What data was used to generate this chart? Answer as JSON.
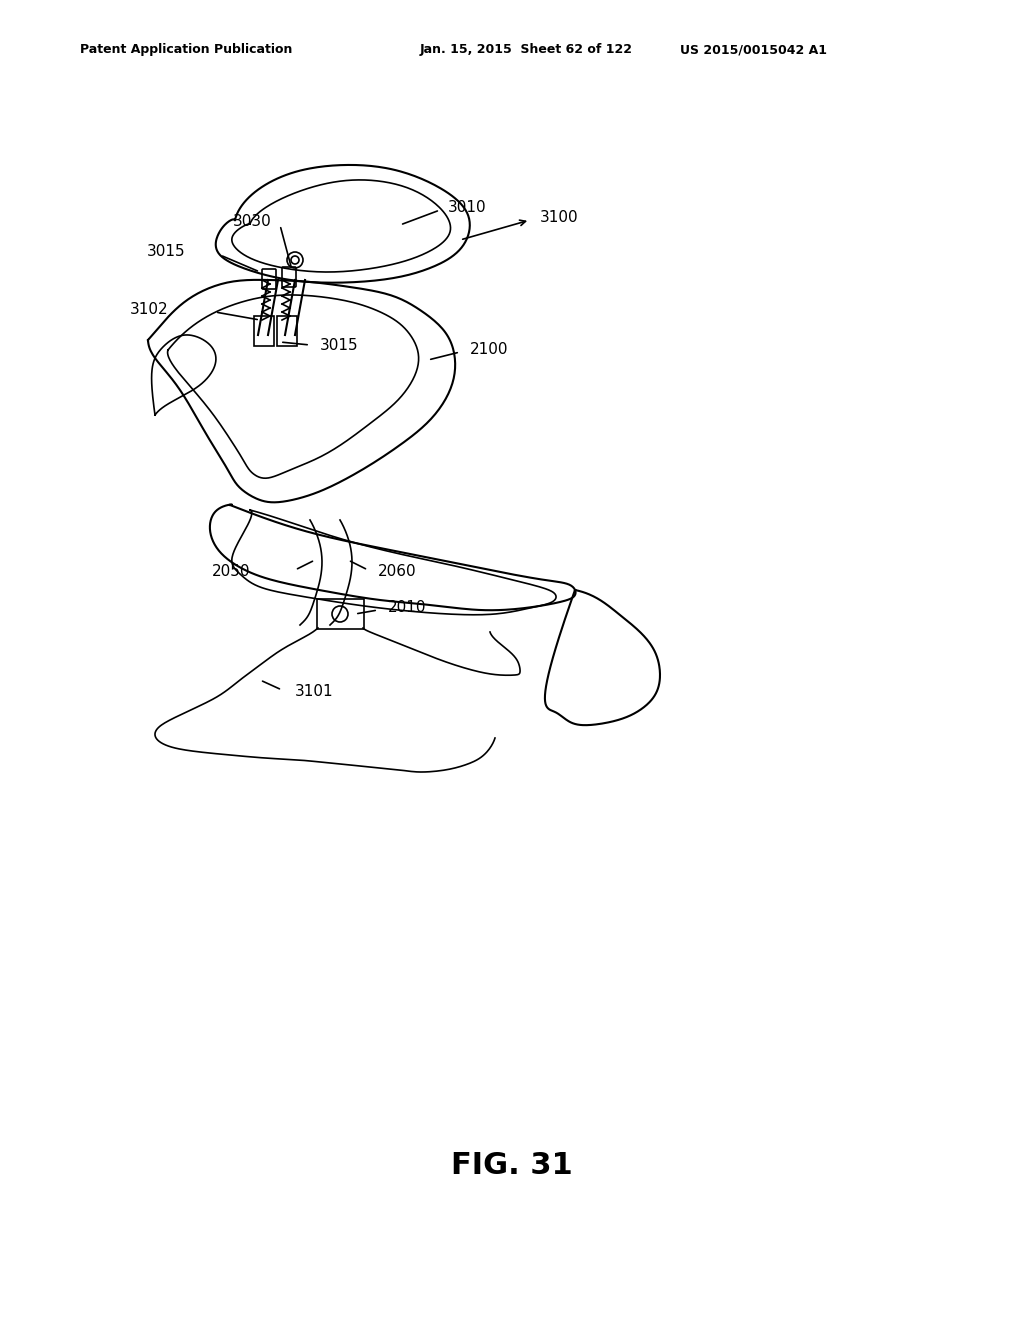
{
  "bg_color": "#ffffff",
  "header_left": "Patent Application Publication",
  "header_mid": "Jan. 15, 2015  Sheet 62 of 122",
  "header_right": "US 2015/0015042 A1",
  "fig_label": "FIG. 31",
  "labels": {
    "3015_top": "3015",
    "3030": "3030",
    "3010": "3010",
    "3100": "3100",
    "3102": "3102",
    "3015_mid": "3015",
    "2100": "2100",
    "2050": "2050",
    "2060": "2060",
    "2010": "2010",
    "3101": "3101"
  },
  "line_color": "#000000",
  "line_width": 1.2
}
